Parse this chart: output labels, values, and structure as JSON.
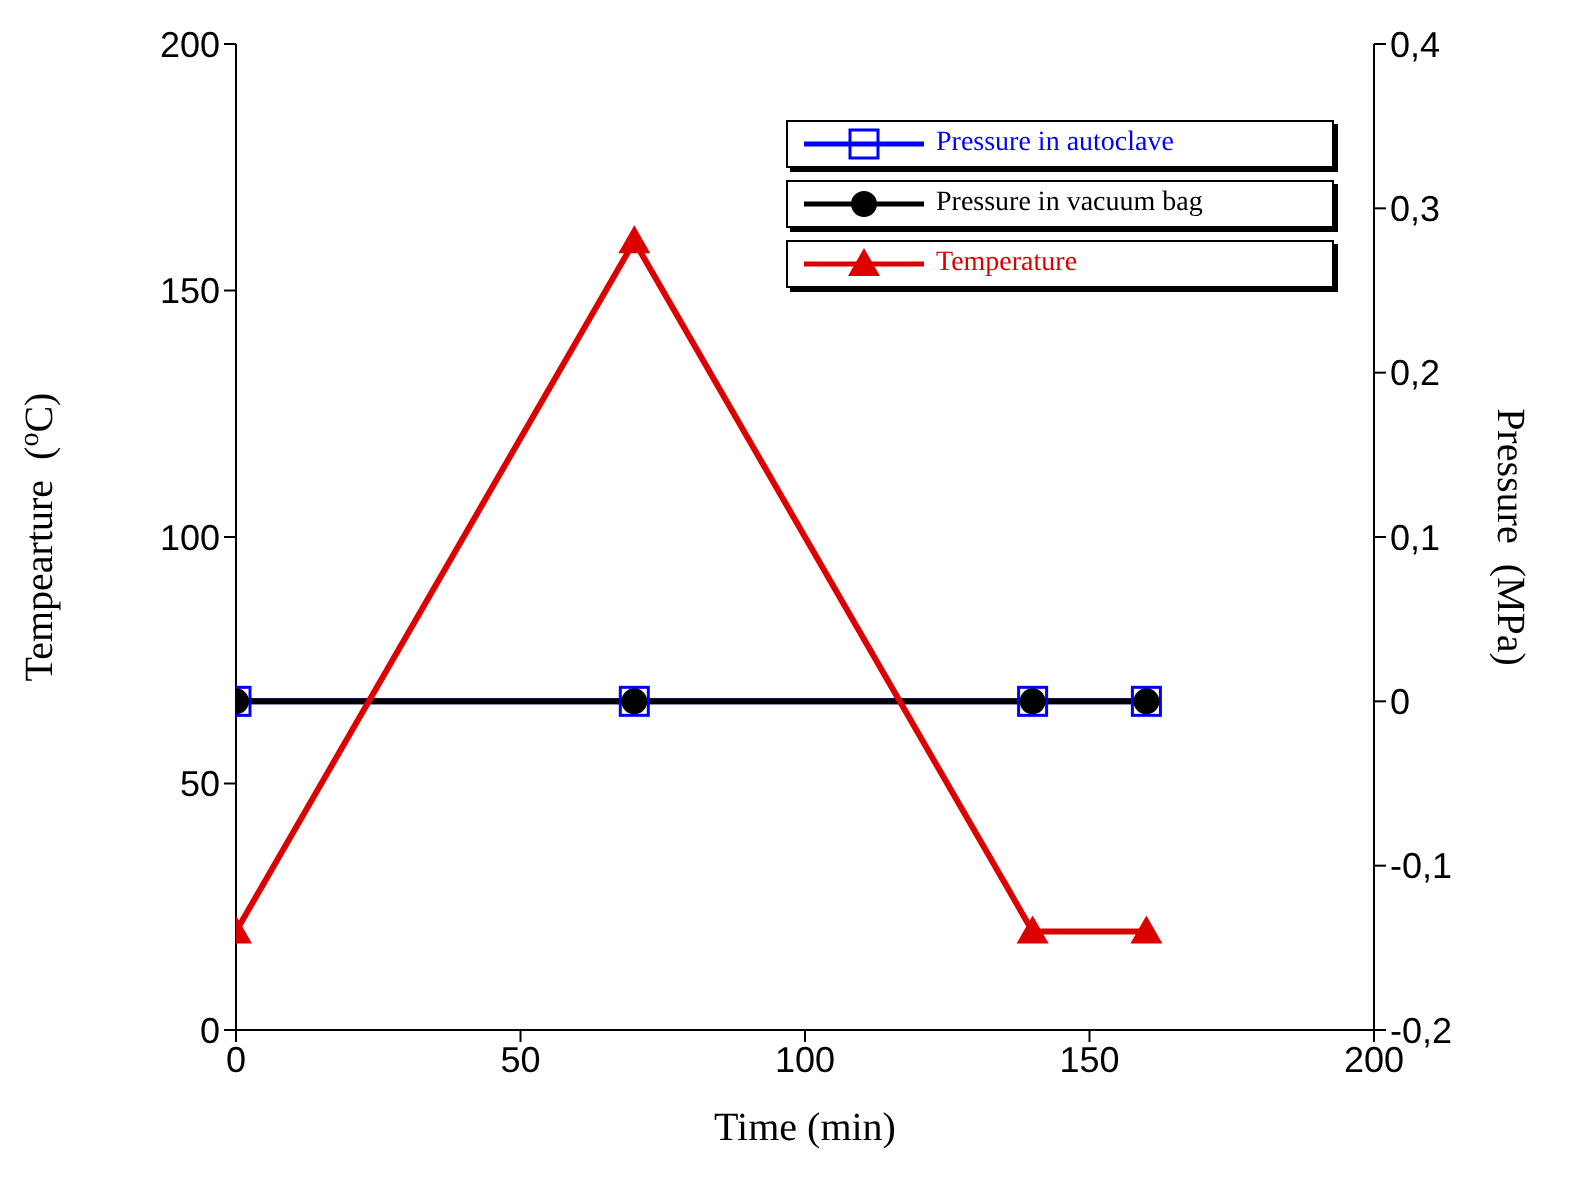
{
  "chart_data": {
    "type": "line",
    "xlabel": "Time   (min)",
    "ylabel": "Tempearture  ($^{o}$C)",
    "y2label": "Pressure  (MPa)",
    "x": [
      0,
      70,
      140,
      160
    ],
    "series": [
      {
        "name": "Pressure in autoclave",
        "color": "#0000ff",
        "values": [
          0,
          0,
          0,
          0
        ],
        "axis": "y2",
        "marker": "square"
      },
      {
        "name": "Pressure in vacuum bag",
        "color": "#000000",
        "values": [
          0,
          0,
          0,
          0
        ],
        "axis": "y2",
        "marker": "circle"
      },
      {
        "name": "Temperature",
        "color": "#dd0000",
        "values": [
          20,
          160,
          20,
          20
        ],
        "marker": "triangle"
      }
    ],
    "xlim": [
      0,
      200
    ],
    "xticks": [
      0,
      50,
      100,
      150,
      200
    ],
    "ylim": [
      0,
      200
    ],
    "yticks": [
      0,
      50,
      100,
      150,
      200
    ],
    "y2lim": [
      -0.2,
      0.4
    ],
    "y2ticks": [
      {
        "value": -0.2,
        "label": "-0,2"
      },
      {
        "value": -0.1,
        "label": "-0,1"
      },
      {
        "value": 0,
        "label": "0"
      },
      {
        "value": 0.1,
        "label": "0,1"
      },
      {
        "value": 0.2,
        "label": "0,2"
      },
      {
        "value": 0.3,
        "label": "0,3"
      },
      {
        "value": 0.4,
        "label": "0,4"
      }
    ],
    "grid": false,
    "legend": "top right"
  }
}
